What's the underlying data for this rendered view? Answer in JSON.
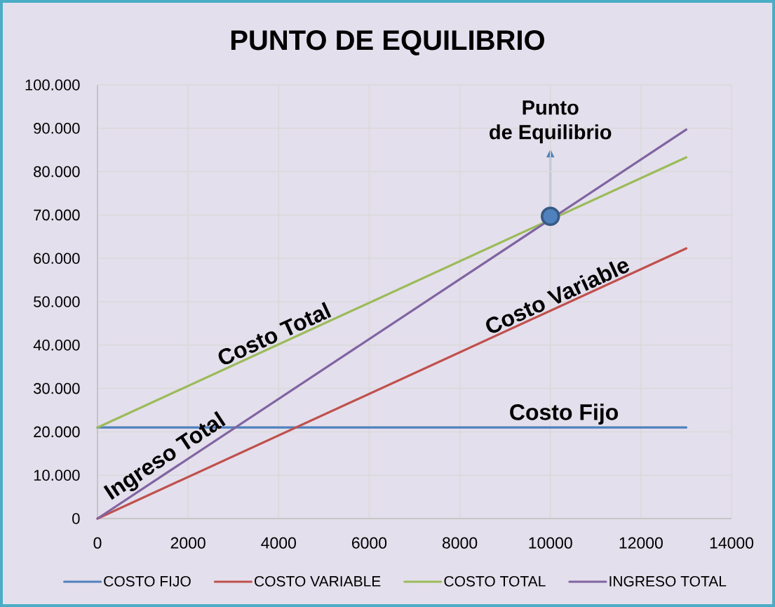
{
  "chart_data": {
    "type": "line",
    "title": "PUNTO DE EQUILIBRIO",
    "xlim": [
      0,
      14000
    ],
    "xticks": [
      0,
      2000,
      4000,
      6000,
      8000,
      10000,
      12000,
      14000
    ],
    "ylim": [
      0,
      100000
    ],
    "yticks": [
      0,
      {
        "value": 10000,
        "label": "10.000"
      },
      {
        "value": 20000,
        "label": "20.000"
      },
      {
        "value": 30000,
        "label": "30.000"
      },
      {
        "value": 40000,
        "label": "40.000"
      },
      {
        "value": 50000,
        "label": "50.000"
      },
      {
        "value": 60000,
        "label": "60.000"
      },
      {
        "value": 70000,
        "label": "70.000"
      },
      {
        "value": 80000,
        "label": "80.000"
      },
      {
        "value": 90000,
        "label": "90.000"
      },
      {
        "value": 100000,
        "label": "100.000"
      }
    ],
    "grid": true,
    "legend": "bottom",
    "marker": "none",
    "line_style": "solid",
    "series": [
      {
        "name": "COSTO FIJO",
        "color": "#4f81bd",
        "x": [
          0,
          13000
        ],
        "values": [
          21000,
          21000
        ]
      },
      {
        "name": "COSTO VARIABLE",
        "color": "#c0504d",
        "x": [
          0,
          13000
        ],
        "values": [
          0,
          62300
        ]
      },
      {
        "name": "COSTO TOTAL",
        "color": "#9bbb59",
        "x": [
          0,
          13000
        ],
        "values": [
          21000,
          83300
        ]
      },
      {
        "name": "INGRESO TOTAL",
        "color": "#8064a2",
        "x": [
          0,
          13000
        ],
        "values": [
          0,
          89700
        ]
      },
      {
        "type": "scatter",
        "color": "#4f81bd",
        "x": [
          10000
        ],
        "values": [
          69700
        ],
        "marker": "circle"
      }
    ],
    "annotations": [
      {
        "text": "Punto de Equilibrio",
        "x": 10000,
        "y": 69700
      },
      {
        "text": "Costo Total",
        "x": 4000,
        "y": 40200
      },
      {
        "text": "Ingreso Total",
        "x": 1670,
        "y": 11520
      },
      {
        "text": "Costo Variable",
        "x": 10250,
        "y": 49100
      },
      {
        "text": "Costo Fijo",
        "x": 10300,
        "y": 21000
      }
    ]
  }
}
